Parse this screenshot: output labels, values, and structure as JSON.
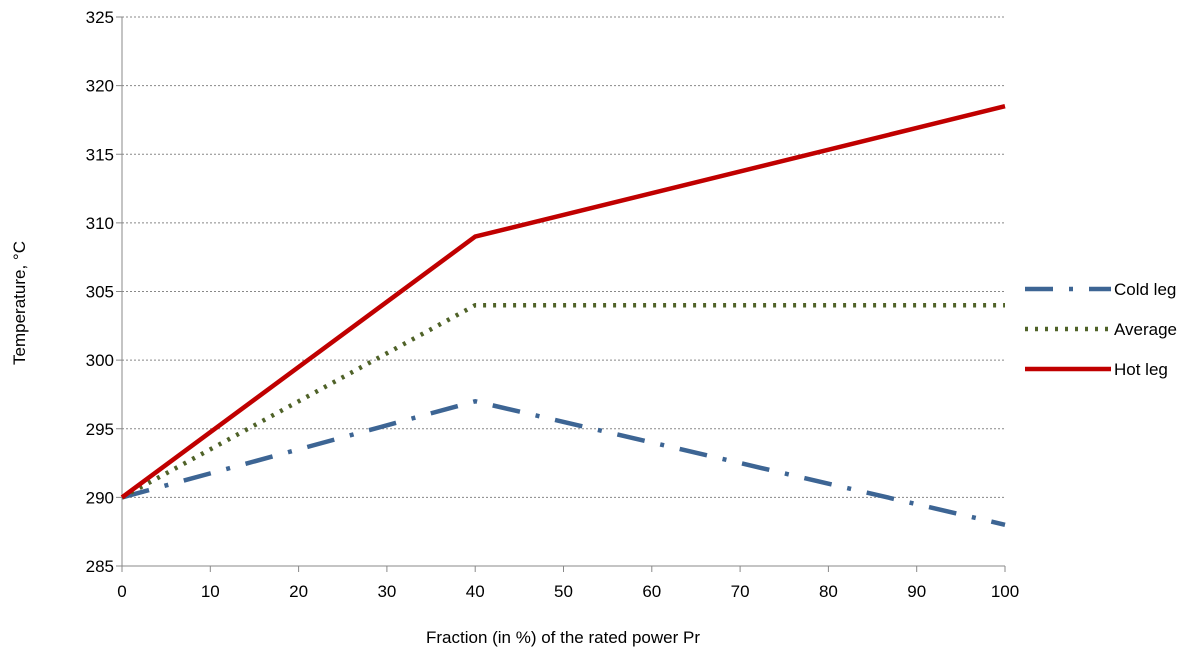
{
  "chart_data": {
    "type": "line",
    "title": "",
    "xlabel": "Fraction (in %) of the rated power Pr",
    "ylabel": "Temperature, °C",
    "xlim": [
      0,
      100
    ],
    "ylim": [
      285,
      325
    ],
    "x_ticks": [
      0,
      10,
      20,
      30,
      40,
      50,
      60,
      70,
      80,
      90,
      100
    ],
    "y_ticks": [
      285,
      290,
      295,
      300,
      305,
      310,
      315,
      320,
      325
    ],
    "x_tick_labels": [
      "0",
      "10",
      "20",
      "30",
      "40",
      "50",
      "60",
      "70",
      "80",
      "90",
      "100"
    ],
    "y_tick_labels": [
      "285",
      "290",
      "295",
      "300",
      "305",
      "310",
      "315",
      "320",
      "325"
    ],
    "grid": "horizontal dotted",
    "legend_position": "right",
    "series": [
      {
        "name": "Cold leg",
        "color": "#3D6594",
        "style": "long-dash-dot",
        "x": [
          0,
          40,
          100
        ],
        "y": [
          290,
          297,
          288
        ]
      },
      {
        "name": "Average",
        "color": "#4F6228",
        "style": "dotted",
        "x": [
          0,
          40,
          100
        ],
        "y": [
          290,
          304,
          304
        ]
      },
      {
        "name": "Hot leg",
        "color": "#C00000",
        "style": "solid",
        "x": [
          0,
          40,
          100
        ],
        "y": [
          290,
          309,
          318.5
        ]
      }
    ]
  }
}
